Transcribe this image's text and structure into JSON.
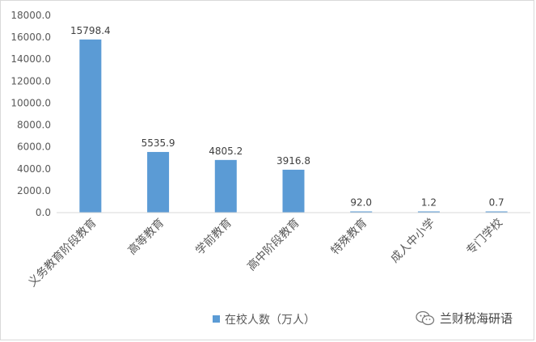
{
  "chart_data": {
    "type": "bar",
    "categories": [
      "义务教育阶段教育",
      "高等教育",
      "学前教育",
      "高中阶段教育",
      "特殊教育",
      "成人中小学",
      "专门学校"
    ],
    "series": [
      {
        "name": "在校人数（万人）",
        "values": [
          15798.4,
          5535.9,
          4805.2,
          3916.8,
          92.0,
          1.2,
          0.7
        ]
      }
    ],
    "value_labels": [
      "15798.4",
      "5535.9",
      "4805.2",
      "3916.8",
      "92.0",
      "1.2",
      "0.7"
    ],
    "y_ticks": [
      "0.0",
      "2000.0",
      "4000.0",
      "6000.0",
      "8000.0",
      "10000.0",
      "12000.0",
      "14000.0",
      "16000.0",
      "18000.0"
    ],
    "ylim": [
      0,
      18000
    ],
    "grid": false,
    "legend_position": "bottom",
    "bar_color": "#5b9bd5"
  },
  "watermark": {
    "text": "兰财税海研语",
    "icon": "wechat-icon"
  }
}
